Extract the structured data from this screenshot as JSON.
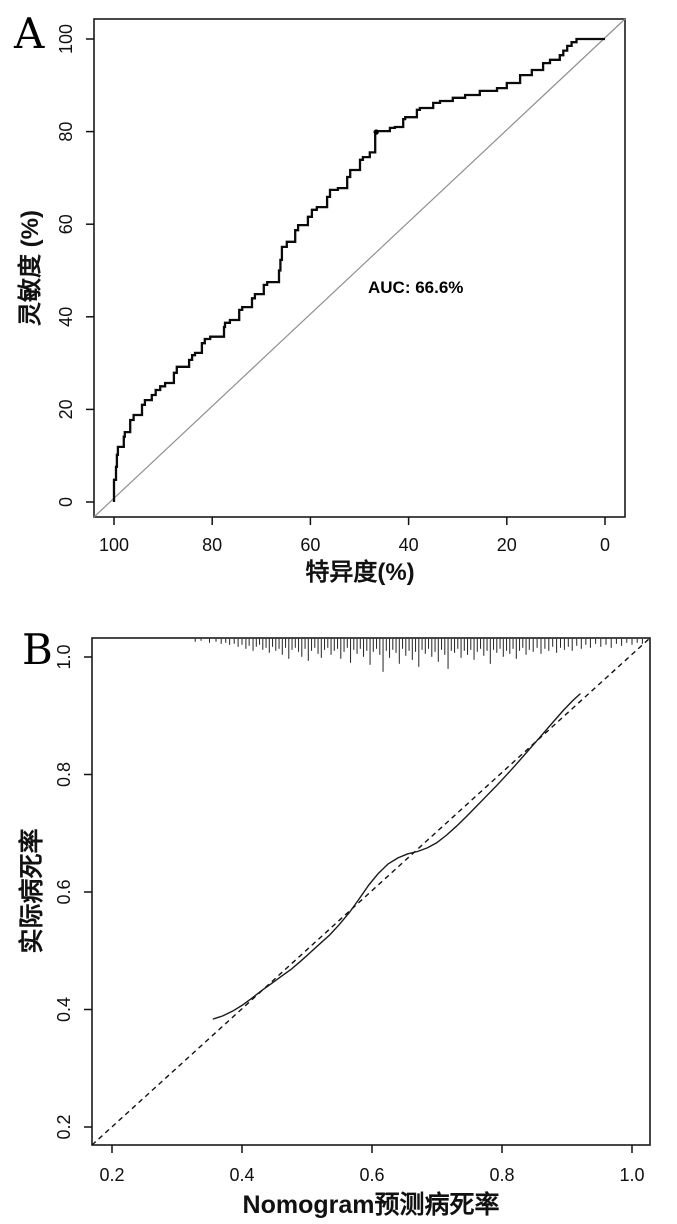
{
  "figure": {
    "background": "#ffffff",
    "panel_a_letter": "A",
    "panel_b_letter": "B"
  },
  "chart_data": [
    {
      "id": "roc",
      "type": "line",
      "panel_label": "A",
      "xlabel": "特异度(%)",
      "ylabel": "灵敏度 (%)",
      "annotation": "AUC: 66.6%",
      "auc_percent": 66.6,
      "x_axis": "specificity percent, reversed from 100 (left) to 0 (right)",
      "x_ticks": [
        "100",
        "80",
        "60",
        "40",
        "20",
        "0"
      ],
      "x_tick_values": [
        100,
        80,
        60,
        40,
        20,
        0
      ],
      "y_ticks": [
        "0",
        "20",
        "40",
        "60",
        "80",
        "100"
      ],
      "y_tick_values": [
        0,
        20,
        40,
        60,
        80,
        100
      ],
      "xlim": [
        104,
        -4
      ],
      "ylim": [
        -4,
        104
      ],
      "grid": false,
      "legend": "none",
      "diagonal_reference_line": true,
      "colors": {
        "curve": "#0a0a0a",
        "diagonal": "#8f8f8f"
      },
      "marker_point_fpr_tpr": [
        53.4,
        79.9
      ],
      "roc_curve_points_fpr_tpr": [
        [
          0,
          0
        ],
        [
          0.4,
          4.8
        ],
        [
          0.6,
          7.6
        ],
        [
          0.8,
          10.2
        ],
        [
          2,
          11.9
        ],
        [
          2.2,
          14.1
        ],
        [
          3.3,
          15.1
        ],
        [
          4,
          17.7
        ],
        [
          5.7,
          18.8
        ],
        [
          6.3,
          21
        ],
        [
          7.7,
          22
        ],
        [
          8.5,
          23.1
        ],
        [
          9.4,
          24.2
        ],
        [
          10.4,
          25
        ],
        [
          12.2,
          25.7
        ],
        [
          12.8,
          27.9
        ],
        [
          15.3,
          29.2
        ],
        [
          15.9,
          30.7
        ],
        [
          16.5,
          31.7
        ],
        [
          17.9,
          32.2
        ],
        [
          18.5,
          34.3
        ],
        [
          19.6,
          35.2
        ],
        [
          22.4,
          35.7
        ],
        [
          22.6,
          37.8
        ],
        [
          23.6,
          38.7
        ],
        [
          25.5,
          39.3
        ],
        [
          26.1,
          41.5
        ],
        [
          28.1,
          42.1
        ],
        [
          28.7,
          44
        ],
        [
          30.5,
          44.9
        ],
        [
          31.2,
          46.9
        ],
        [
          33.6,
          47.5
        ],
        [
          33.9,
          50
        ],
        [
          34.2,
          52.3
        ],
        [
          35.2,
          55.1
        ],
        [
          36.9,
          56.2
        ],
        [
          37.5,
          58.7
        ],
        [
          39.5,
          59.8
        ],
        [
          40.3,
          61.6
        ],
        [
          41.3,
          63.1
        ],
        [
          43.4,
          63.7
        ],
        [
          44,
          65.9
        ],
        [
          45.6,
          67.4
        ],
        [
          47.5,
          67.8
        ],
        [
          48.1,
          70.2
        ],
        [
          50.1,
          71.7
        ],
        [
          50.7,
          73.9
        ],
        [
          52.1,
          74.5
        ],
        [
          53.2,
          75.5
        ],
        [
          53.4,
          79.9
        ],
        [
          56.2,
          80.1
        ],
        [
          57.2,
          80.8
        ],
        [
          58.9,
          81
        ],
        [
          59.3,
          82.7
        ],
        [
          61.7,
          83.1
        ],
        [
          62.3,
          84.7
        ],
        [
          65,
          85.1
        ],
        [
          66.4,
          86.2
        ],
        [
          69,
          86.6
        ],
        [
          71.5,
          87.3
        ],
        [
          74.5,
          87.9
        ],
        [
          78,
          88.8
        ],
        [
          80,
          89.4
        ],
        [
          82.7,
          90.5
        ],
        [
          85.1,
          92.2
        ],
        [
          87.4,
          93.3
        ],
        [
          88.8,
          94.8
        ],
        [
          90.8,
          95.5
        ],
        [
          91.5,
          96.5
        ],
        [
          92.3,
          97.5
        ],
        [
          93.2,
          98.5
        ],
        [
          94.2,
          99.3
        ],
        [
          95,
          100
        ],
        [
          100,
          100
        ]
      ]
    },
    {
      "id": "calibration",
      "type": "line",
      "panel_label": "B",
      "xlabel": "Nomogram预测病死率",
      "ylabel": "实际病死率",
      "x_ticks": [
        "0.2",
        "0.4",
        "0.6",
        "0.8",
        "1.0"
      ],
      "x_tick_values": [
        0.2,
        0.4,
        0.6,
        0.8,
        1.0
      ],
      "y_ticks": [
        "0.2",
        "0.4",
        "0.6",
        "0.8",
        "1.0"
      ],
      "y_tick_values": [
        0.2,
        0.4,
        0.6,
        0.8,
        1.0
      ],
      "xlim": [
        0.17,
        1.03
      ],
      "ylim": [
        0.17,
        1.03
      ],
      "grid": false,
      "legend": "none",
      "ideal_line": {
        "style": "dashed",
        "equation": "y = x"
      },
      "colors": {
        "curve": "#1a1a1a",
        "ideal": "#111111",
        "rug": "#222222"
      },
      "calibration_curve_points": [
        [
          0.356,
          0.384
        ],
        [
          0.37,
          0.389
        ],
        [
          0.385,
          0.397
        ],
        [
          0.4,
          0.407
        ],
        [
          0.415,
          0.419
        ],
        [
          0.43,
          0.432
        ],
        [
          0.445,
          0.444
        ],
        [
          0.46,
          0.456
        ],
        [
          0.475,
          0.468
        ],
        [
          0.49,
          0.482
        ],
        [
          0.505,
          0.497
        ],
        [
          0.52,
          0.512
        ],
        [
          0.535,
          0.527
        ],
        [
          0.55,
          0.545
        ],
        [
          0.565,
          0.565
        ],
        [
          0.58,
          0.588
        ],
        [
          0.595,
          0.612
        ],
        [
          0.61,
          0.632
        ],
        [
          0.625,
          0.648
        ],
        [
          0.64,
          0.658
        ],
        [
          0.655,
          0.665
        ],
        [
          0.67,
          0.669
        ],
        [
          0.685,
          0.675
        ],
        [
          0.7,
          0.684
        ],
        [
          0.715,
          0.697
        ],
        [
          0.73,
          0.712
        ],
        [
          0.745,
          0.728
        ],
        [
          0.76,
          0.745
        ],
        [
          0.775,
          0.762
        ],
        [
          0.79,
          0.779
        ],
        [
          0.805,
          0.797
        ],
        [
          0.82,
          0.815
        ],
        [
          0.835,
          0.834
        ],
        [
          0.85,
          0.853
        ],
        [
          0.865,
          0.872
        ],
        [
          0.88,
          0.891
        ],
        [
          0.895,
          0.91
        ],
        [
          0.91,
          0.927
        ],
        [
          0.92,
          0.937
        ]
      ],
      "rug_marks_x_len": [
        [
          0.328,
          3
        ],
        [
          0.337,
          2
        ],
        [
          0.35,
          4
        ],
        [
          0.36,
          3
        ],
        [
          0.368,
          5
        ],
        [
          0.375,
          4
        ],
        [
          0.381,
          6
        ],
        [
          0.388,
          5
        ],
        [
          0.394,
          8
        ],
        [
          0.4,
          6
        ],
        [
          0.406,
          10
        ],
        [
          0.411,
          7
        ],
        [
          0.417,
          12
        ],
        [
          0.422,
          8
        ],
        [
          0.427,
          6
        ],
        [
          0.432,
          11
        ],
        [
          0.437,
          9
        ],
        [
          0.442,
          14
        ],
        [
          0.447,
          8
        ],
        [
          0.452,
          12
        ],
        [
          0.457,
          10
        ],
        [
          0.462,
          16
        ],
        [
          0.467,
          9
        ],
        [
          0.472,
          20
        ],
        [
          0.477,
          11
        ],
        [
          0.482,
          9
        ],
        [
          0.487,
          13
        ],
        [
          0.492,
          18
        ],
        [
          0.497,
          10
        ],
        [
          0.502,
          22
        ],
        [
          0.507,
          12
        ],
        [
          0.512,
          9
        ],
        [
          0.517,
          15
        ],
        [
          0.522,
          19
        ],
        [
          0.527,
          11
        ],
        [
          0.532,
          9
        ],
        [
          0.537,
          16
        ],
        [
          0.542,
          12
        ],
        [
          0.547,
          10
        ],
        [
          0.552,
          20
        ],
        [
          0.557,
          13
        ],
        [
          0.562,
          9
        ],
        [
          0.567,
          24
        ],
        [
          0.572,
          11
        ],
        [
          0.577,
          15
        ],
        [
          0.582,
          10
        ],
        [
          0.587,
          18
        ],
        [
          0.592,
          12
        ],
        [
          0.597,
          26
        ],
        [
          0.602,
          13
        ],
        [
          0.607,
          10
        ],
        [
          0.612,
          16
        ],
        [
          0.617,
          33
        ],
        [
          0.622,
          12
        ],
        [
          0.627,
          19
        ],
        [
          0.632,
          11
        ],
        [
          0.637,
          14
        ],
        [
          0.642,
          25
        ],
        [
          0.647,
          10
        ],
        [
          0.652,
          17
        ],
        [
          0.657,
          12
        ],
        [
          0.662,
          21
        ],
        [
          0.667,
          13
        ],
        [
          0.672,
          28
        ],
        [
          0.677,
          11
        ],
        [
          0.682,
          15
        ],
        [
          0.687,
          10
        ],
        [
          0.692,
          18
        ],
        [
          0.697,
          13
        ],
        [
          0.702,
          23
        ],
        [
          0.707,
          11
        ],
        [
          0.712,
          16
        ],
        [
          0.717,
          30
        ],
        [
          0.722,
          12
        ],
        [
          0.727,
          14
        ],
        [
          0.732,
          10
        ],
        [
          0.737,
          19
        ],
        [
          0.742,
          12
        ],
        [
          0.747,
          16
        ],
        [
          0.752,
          11
        ],
        [
          0.757,
          21
        ],
        [
          0.762,
          13
        ],
        [
          0.767,
          10
        ],
        [
          0.772,
          17
        ],
        [
          0.777,
          12
        ],
        [
          0.782,
          25
        ],
        [
          0.787,
          11
        ],
        [
          0.792,
          14
        ],
        [
          0.797,
          10
        ],
        [
          0.802,
          18
        ],
        [
          0.807,
          12
        ],
        [
          0.812,
          15
        ],
        [
          0.817,
          10
        ],
        [
          0.822,
          20
        ],
        [
          0.827,
          12
        ],
        [
          0.832,
          9
        ],
        [
          0.837,
          16
        ],
        [
          0.842,
          11
        ],
        [
          0.848,
          13
        ],
        [
          0.854,
          9
        ],
        [
          0.86,
          15
        ],
        [
          0.866,
          10
        ],
        [
          0.872,
          12
        ],
        [
          0.878,
          8
        ],
        [
          0.884,
          14
        ],
        [
          0.89,
          9
        ],
        [
          0.896,
          11
        ],
        [
          0.902,
          8
        ],
        [
          0.908,
          12
        ],
        [
          0.915,
          7
        ],
        [
          0.922,
          10
        ],
        [
          0.929,
          6
        ],
        [
          0.936,
          9
        ],
        [
          0.944,
          5
        ],
        [
          0.952,
          8
        ],
        [
          0.96,
          6
        ],
        [
          0.968,
          9
        ],
        [
          0.976,
          5
        ],
        [
          0.984,
          7
        ],
        [
          0.992,
          4
        ],
        [
          1.0,
          6
        ],
        [
          1.008,
          4
        ],
        [
          1.016,
          5
        ]
      ]
    }
  ]
}
